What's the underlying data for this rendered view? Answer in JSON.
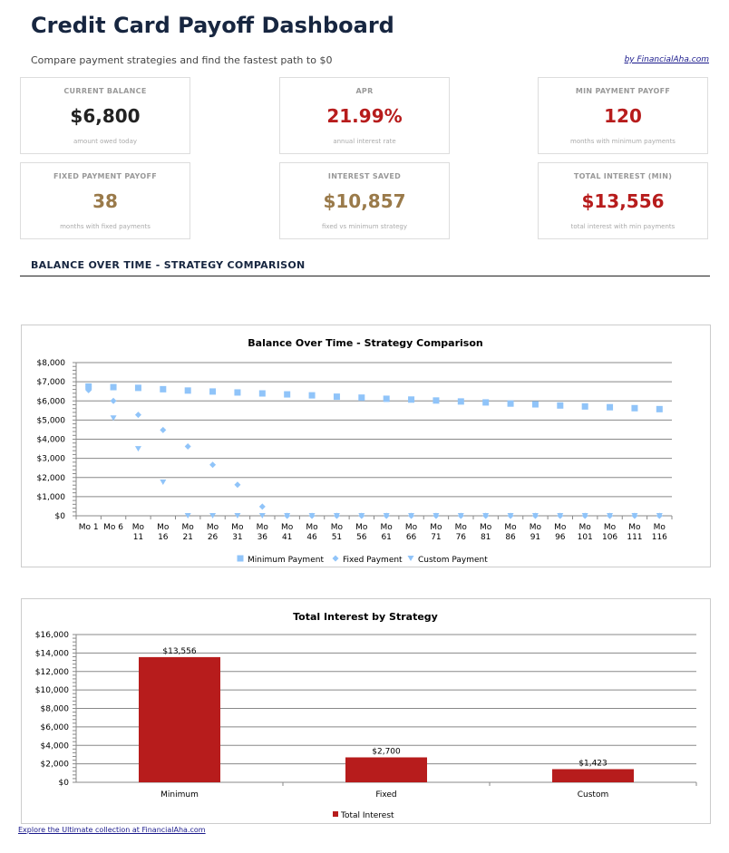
{
  "header": {
    "title": "Credit Card Payoff Dashboard",
    "subtitle": "Compare payment strategies and find the fastest path to $0",
    "byline": "by FinancialAha.com"
  },
  "cards": [
    {
      "label": "CURRENT BALANCE",
      "value": "$6,800",
      "note": "amount owed today",
      "color": "#222222"
    },
    {
      "label": "APR",
      "value": "21.99%",
      "note": "annual interest rate",
      "color": "#b71c1c"
    },
    {
      "label": "MIN PAYMENT PAYOFF",
      "value": "120",
      "note": "months with minimum payments",
      "color": "#b71c1c"
    },
    {
      "label": "FIXED PAYMENT PAYOFF",
      "value": "38",
      "note": "months with fixed payments",
      "color": "#9a7a4a"
    },
    {
      "label": "INTEREST SAVED",
      "value": "$10,857",
      "note": "fixed vs minimum strategy",
      "color": "#9a7a4a"
    },
    {
      "label": "TOTAL INTEREST (MIN)",
      "value": "$13,556",
      "note": "total interest with min payments",
      "color": "#b71c1c"
    }
  ],
  "section_title": "BALANCE OVER TIME - STRATEGY COMPARISON",
  "chart_data": [
    {
      "type": "scatter",
      "title": "Balance Over Time - Strategy Comparison",
      "categories": [
        "Mo 1",
        "Mo 6",
        "Mo 11",
        "Mo 16",
        "Mo 21",
        "Mo 26",
        "Mo 31",
        "Mo 36",
        "Mo 41",
        "Mo 46",
        "Mo 51",
        "Mo 56",
        "Mo 61",
        "Mo 66",
        "Mo 71",
        "Mo 76",
        "Mo 81",
        "Mo 86",
        "Mo 91",
        "Mo 96",
        "Mo 101",
        "Mo 106",
        "Mo 111",
        "Mo 116"
      ],
      "ylim": [
        0,
        8000
      ],
      "yticks": [
        "$0",
        "$1,000",
        "$2,000",
        "$3,000",
        "$4,000",
        "$5,000",
        "$6,000",
        "$7,000",
        "$8,000"
      ],
      "grid": true,
      "legend": "bottom",
      "color": "#90c4f9",
      "series": [
        {
          "name": "Minimum Payment",
          "marker": "square",
          "values": [
            6750,
            6720,
            6680,
            6610,
            6540,
            6490,
            6440,
            6390,
            6340,
            6290,
            6220,
            6170,
            6110,
            6070,
            6020,
            5970,
            5920,
            5860,
            5820,
            5760,
            5710,
            5670,
            5620,
            5570
          ]
        },
        {
          "name": "Fixed Payment",
          "marker": "diamond",
          "values": [
            6560,
            6000,
            5270,
            4480,
            3620,
            2660,
            1620,
            480,
            0,
            0,
            0,
            0,
            0,
            0,
            0,
            0,
            0,
            0,
            0,
            0,
            0,
            0,
            0,
            0
          ]
        },
        {
          "name": "Custom Payment",
          "marker": "triangle-down",
          "values": [
            6620,
            5100,
            3500,
            1750,
            0,
            0,
            0,
            0,
            0,
            0,
            0,
            0,
            0,
            0,
            0,
            0,
            0,
            0,
            0,
            0,
            0,
            0,
            0,
            0
          ]
        }
      ]
    },
    {
      "type": "bar",
      "title": "Total Interest by Strategy",
      "categories": [
        "Minimum",
        "Fixed",
        "Custom"
      ],
      "series": [
        {
          "name": "Total Interest",
          "values": [
            13556,
            2700,
            1423
          ]
        }
      ],
      "data_labels": [
        "$13,556",
        "$2,700",
        "$1,423"
      ],
      "ylim": [
        0,
        16000
      ],
      "yticks": [
        "$0",
        "$2,000",
        "$4,000",
        "$6,000",
        "$8,000",
        "$10,000",
        "$12,000",
        "$14,000",
        "$16,000"
      ],
      "grid": true,
      "legend": "bottom",
      "color": "#b71c1c"
    }
  ],
  "footer": {
    "link": "Explore the Ultimate collection at FinancialAha.com"
  }
}
